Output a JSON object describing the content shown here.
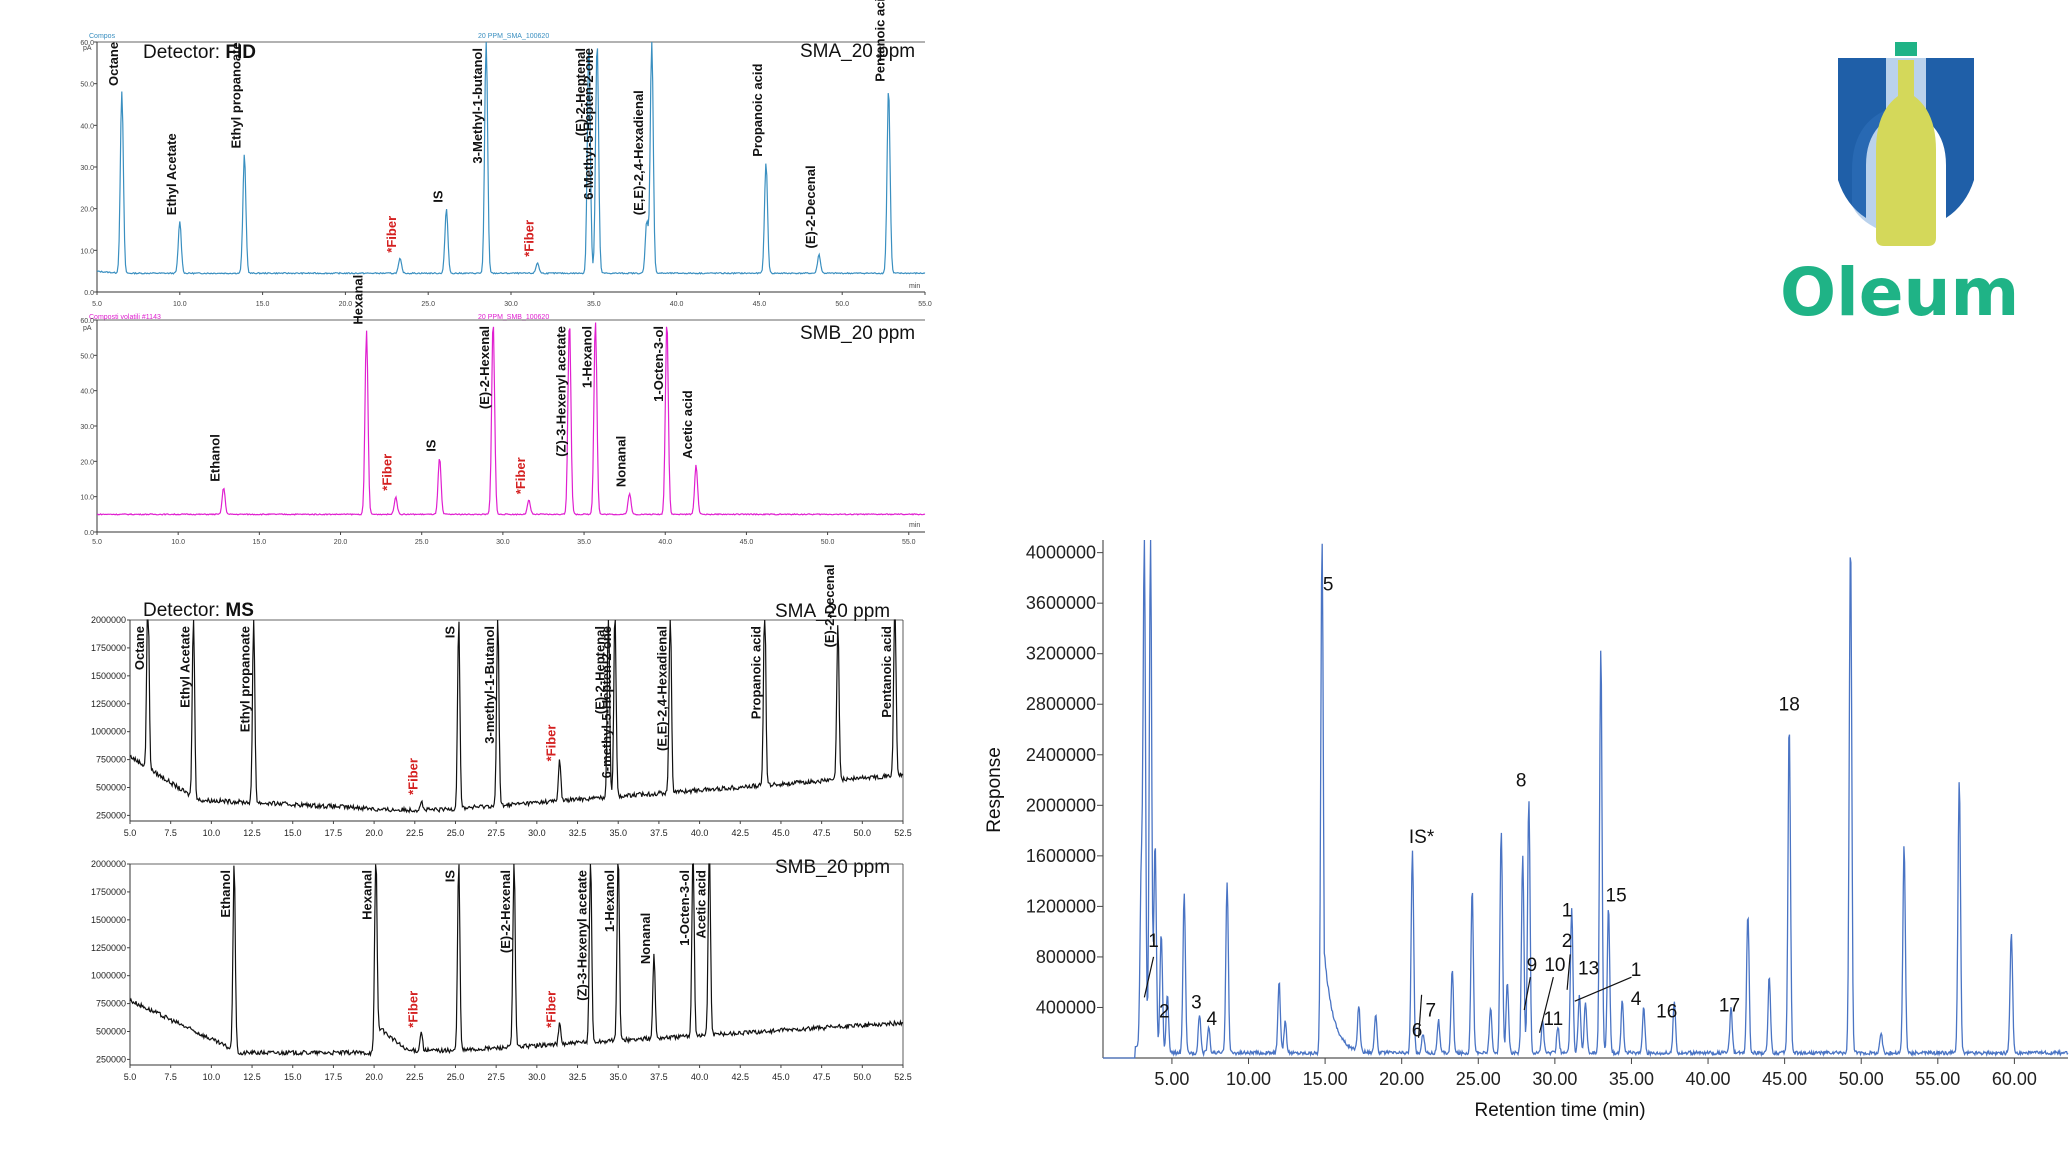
{
  "brand": {
    "name": "Oleum",
    "colors": {
      "blue": "#1f5fa8",
      "teal": "#1fb386",
      "yellow": "#d4d85a"
    }
  },
  "panels": {
    "fid_a": {
      "detector_prefix": "Detector: ",
      "detector": "FID",
      "sample": "SMA_20 ppm",
      "trace_title": "20 PPM_SMA_100620",
      "tiny_left": "Compos",
      "unit": "pA",
      "color": "#3a8fc0"
    },
    "fid_b": {
      "sample": "SMB_20 ppm",
      "trace_title": "20 PPM_SMB_100620",
      "tiny_left": "Composti volatili #1143",
      "unit": "pA",
      "color": "#e020d0"
    },
    "ms_a": {
      "detector_prefix": "Detector: ",
      "detector": "MS",
      "sample": "SMA_20 ppm",
      "color": "#111111"
    },
    "ms_b": {
      "sample": "SMB_20 ppm",
      "color": "#111111"
    },
    "right": {
      "color": "#4a74c4"
    }
  },
  "chart_data": [
    {
      "type": "line",
      "id": "fid_a",
      "xlabel": "min",
      "ylabel": "pA",
      "xlim": [
        5,
        55
      ],
      "ylim": [
        0,
        60
      ],
      "xticks": [
        "5.0",
        "10.0",
        "15.0",
        "20.0",
        "25.0",
        "30.0",
        "35.0",
        "40.0",
        "45.0",
        "50.0",
        "55.0"
      ],
      "yticks": [
        "0.0",
        "10.0",
        "20.0",
        "30.0",
        "40.0",
        "50.0",
        "60.0"
      ],
      "baseline": 4.5,
      "peaks": [
        {
          "x": 6.5,
          "y": 48,
          "label": "Octane"
        },
        {
          "x": 10.0,
          "y": 17,
          "label": "Ethyl Acetate"
        },
        {
          "x": 13.9,
          "y": 33,
          "label": "Ethyl propanoate"
        },
        {
          "x": 23.3,
          "y": 8,
          "label": "*Fiber",
          "fiber": true
        },
        {
          "x": 26.1,
          "y": 20,
          "label": "IS"
        },
        {
          "x": 28.5,
          "y": 60,
          "label": "3-Methyl-1-butanol"
        },
        {
          "x": 31.6,
          "y": 7,
          "label": "*Fiber",
          "fiber": true
        },
        {
          "x": 34.7,
          "y": 60,
          "label": "(E)-2-Heptenal"
        },
        {
          "x": 35.2,
          "y": 60,
          "label": "6-Methyl-5-Hepten-2-one"
        },
        {
          "x": 38.2,
          "y": 17,
          "label": "(E,E)-2,4-Hexadienal"
        },
        {
          "x": 38.5,
          "y": 60,
          "label": ""
        },
        {
          "x": 45.4,
          "y": 31,
          "label": "Propanoic acid"
        },
        {
          "x": 48.6,
          "y": 9,
          "label": "(E)-2-Decenal"
        },
        {
          "x": 52.8,
          "y": 49,
          "label": "Pentanoic acid"
        }
      ]
    },
    {
      "type": "line",
      "id": "fid_b",
      "xlabel": "min",
      "ylabel": "pA",
      "xlim": [
        5,
        56
      ],
      "ylim": [
        0,
        60
      ],
      "xticks": [
        "5.0",
        "10.0",
        "15.0",
        "20.0",
        "25.0",
        "30.0",
        "35.0",
        "40.0",
        "45.0",
        "50.0",
        "55.0"
      ],
      "yticks": [
        "0.0",
        "10.0",
        "20.0",
        "30.0",
        "40.0",
        "50.0",
        "60.0"
      ],
      "baseline": 5,
      "peaks": [
        {
          "x": 12.8,
          "y": 12.5,
          "label": "Ethanol"
        },
        {
          "x": 21.6,
          "y": 57,
          "label": "Hexanal"
        },
        {
          "x": 23.4,
          "y": 10,
          "label": "*Fiber",
          "fiber": true
        },
        {
          "x": 26.1,
          "y": 21,
          "label": "IS"
        },
        {
          "x": 29.4,
          "y": 60,
          "label": "(E)-2-Hexenal"
        },
        {
          "x": 31.6,
          "y": 9,
          "label": "*Fiber",
          "fiber": true
        },
        {
          "x": 34.1,
          "y": 60,
          "label": "(Z)-3-Hexenyl acetate"
        },
        {
          "x": 35.7,
          "y": 60,
          "label": "1-Hexanol"
        },
        {
          "x": 37.8,
          "y": 11,
          "label": "Nonanal"
        },
        {
          "x": 40.1,
          "y": 60,
          "label": "1-Octen-3-ol"
        },
        {
          "x": 41.9,
          "y": 19,
          "label": "Acetic acid"
        }
      ]
    },
    {
      "type": "line",
      "id": "ms_a",
      "xlim": [
        5,
        52.5
      ],
      "ylim": [
        200000,
        2000000
      ],
      "xticks": [
        "5.0",
        "7.5",
        "10.0",
        "12.5",
        "15.0",
        "17.5",
        "20.0",
        "22.5",
        "25.0",
        "27.5",
        "30.0",
        "32.5",
        "35.0",
        "37.5",
        "40.0",
        "42.5",
        "45.0",
        "47.5",
        "50.0",
        "52.5"
      ],
      "yticks": [
        "250000",
        "500000",
        "750000",
        "1000000",
        "1250000",
        "1500000",
        "1750000",
        "2000000"
      ],
      "peaks": [
        {
          "x": 6.1,
          "y": 2000000,
          "label": "Octane"
        },
        {
          "x": 8.9,
          "y": 2000000,
          "label": "Ethyl Acetate"
        },
        {
          "x": 12.6,
          "y": 2000000,
          "label": "Ethyl propanoate"
        },
        {
          "x": 22.9,
          "y": 380000,
          "label": "*Fiber",
          "fiber": true
        },
        {
          "x": 25.2,
          "y": 2000000,
          "label": "IS"
        },
        {
          "x": 27.6,
          "y": 2000000,
          "label": "3-methyl-1-Butanol"
        },
        {
          "x": 31.4,
          "y": 680000,
          "label": "*Fiber",
          "fiber": true
        },
        {
          "x": 34.4,
          "y": 2000000,
          "label": "(E)-2-Heptenal"
        },
        {
          "x": 34.8,
          "y": 2000000,
          "label": "6-methyl-5-Hepten-2-one"
        },
        {
          "x": 38.2,
          "y": 2000000,
          "label": "(E,E)-2,4-Hexadienal"
        },
        {
          "x": 44.0,
          "y": 2000000,
          "label": "Propanoic acid"
        },
        {
          "x": 48.5,
          "y": 1700000,
          "label": "(E)-2-Decenal"
        },
        {
          "x": 52.0,
          "y": 2000000,
          "label": "Pentanoic acid"
        }
      ]
    },
    {
      "type": "line",
      "id": "ms_b",
      "xlim": [
        5,
        52.5
      ],
      "ylim": [
        200000,
        2000000
      ],
      "xticks": [
        "5.0",
        "7.5",
        "10.0",
        "12.5",
        "15.0",
        "17.5",
        "20.0",
        "22.5",
        "25.0",
        "27.5",
        "30.0",
        "32.5",
        "35.0",
        "37.5",
        "40.0",
        "42.5",
        "45.0",
        "47.5",
        "50.0",
        "52.5"
      ],
      "yticks": [
        "250000",
        "500000",
        "750000",
        "1000000",
        "1250000",
        "1500000",
        "1750000",
        "2000000"
      ],
      "peaks": [
        {
          "x": 11.4,
          "y": 2000000,
          "label": "Ethanol"
        },
        {
          "x": 20.1,
          "y": 2000000,
          "label": "Hexanal"
        },
        {
          "x": 22.9,
          "y": 480000,
          "label": "*Fiber",
          "fiber": true
        },
        {
          "x": 25.2,
          "y": 2000000,
          "label": "IS"
        },
        {
          "x": 28.6,
          "y": 2000000,
          "label": "(E)-2-Hexenal"
        },
        {
          "x": 31.4,
          "y": 480000,
          "label": "*Fiber",
          "fiber": true
        },
        {
          "x": 33.3,
          "y": 2000000,
          "label": "(Z)-3-Hexenyl acetate"
        },
        {
          "x": 35.0,
          "y": 2000000,
          "label": "1-Hexanol"
        },
        {
          "x": 37.2,
          "y": 1050000,
          "label": "Nonanal"
        },
        {
          "x": 39.6,
          "y": 2000000,
          "label": "1-Octen-3-ol"
        },
        {
          "x": 40.6,
          "y": 2000000,
          "label": "Acetic acid"
        }
      ]
    },
    {
      "type": "line",
      "id": "right",
      "xlabel": "Retention time (min)",
      "ylabel": "Response",
      "xlim": [
        0.5,
        63.5
      ],
      "ylim": [
        0,
        4100000
      ],
      "xticks": [
        "5.00",
        "10.00",
        "15.00",
        "20.00",
        "25.00",
        "30.00",
        "35.00",
        "40.00",
        "45.00",
        "50.00",
        "55.00",
        "60.00"
      ],
      "yticks": [
        "400000",
        "800000",
        "1200000",
        "1600000",
        "2000000",
        "2400000",
        "2800000",
        "3200000",
        "3600000",
        "4000000"
      ],
      "peaks": [
        {
          "x": 3.2,
          "y": 4100000
        },
        {
          "x": 3.6,
          "y": 4100000
        },
        {
          "x": 3.0,
          "y": 1400000
        },
        {
          "x": 3.9,
          "y": 1700000
        },
        {
          "x": 4.3,
          "y": 1000000
        },
        {
          "x": 4.7,
          "y": 500000
        },
        {
          "x": 5.8,
          "y": 1300000
        },
        {
          "x": 6.8,
          "y": 350000
        },
        {
          "x": 7.4,
          "y": 250000
        },
        {
          "x": 8.6,
          "y": 1400000
        },
        {
          "x": 12.0,
          "y": 600000
        },
        {
          "x": 12.4,
          "y": 300000
        },
        {
          "x": 14.8,
          "y": 4100000
        },
        {
          "x": 17.2,
          "y": 400000
        },
        {
          "x": 18.3,
          "y": 350000
        },
        {
          "x": 20.7,
          "y": 1650000
        },
        {
          "x": 21.4,
          "y": 200000
        },
        {
          "x": 22.4,
          "y": 300000
        },
        {
          "x": 23.3,
          "y": 700000
        },
        {
          "x": 24.6,
          "y": 1350000
        },
        {
          "x": 25.8,
          "y": 400000
        },
        {
          "x": 26.5,
          "y": 1800000
        },
        {
          "x": 26.9,
          "y": 600000
        },
        {
          "x": 27.9,
          "y": 1600000
        },
        {
          "x": 28.3,
          "y": 2050000
        },
        {
          "x": 29.2,
          "y": 300000
        },
        {
          "x": 30.2,
          "y": 250000
        },
        {
          "x": 31.1,
          "y": 1200000
        },
        {
          "x": 31.6,
          "y": 500000
        },
        {
          "x": 32.0,
          "y": 450000
        },
        {
          "x": 33.0,
          "y": 3250000
        },
        {
          "x": 33.5,
          "y": 1200000
        },
        {
          "x": 34.4,
          "y": 450000
        },
        {
          "x": 35.8,
          "y": 400000
        },
        {
          "x": 37.8,
          "y": 450000
        },
        {
          "x": 41.5,
          "y": 400000
        },
        {
          "x": 42.6,
          "y": 1150000
        },
        {
          "x": 44.0,
          "y": 650000
        },
        {
          "x": 45.3,
          "y": 2650000
        },
        {
          "x": 49.3,
          "y": 4100000
        },
        {
          "x": 51.3,
          "y": 200000
        },
        {
          "x": 52.8,
          "y": 1700000
        },
        {
          "x": 56.4,
          "y": 2200000
        },
        {
          "x": 59.8,
          "y": 1000000
        }
      ],
      "annotations": [
        {
          "text": "1",
          "x": 3.8,
          "y": 880000
        },
        {
          "text": "2",
          "x": 4.5,
          "y": 320000
        },
        {
          "text": "3",
          "x": 6.6,
          "y": 390000
        },
        {
          "text": "4",
          "x": 7.6,
          "y": 260000
        },
        {
          "text": "5",
          "x": 15.2,
          "y": 3700000
        },
        {
          "text": "6",
          "x": 21.0,
          "y": 170000
        },
        {
          "text": "7",
          "x": 21.9,
          "y": 330000
        },
        {
          "text": "IS*",
          "x": 21.3,
          "y": 1700000
        },
        {
          "text": "8",
          "x": 27.8,
          "y": 2150000
        },
        {
          "text": "9",
          "x": 28.5,
          "y": 690000
        },
        {
          "text": "10",
          "x": 30.0,
          "y": 690000
        },
        {
          "text": "11",
          "x": 29.9,
          "y": 260000
        },
        {
          "text": "1",
          "x": 30.8,
          "y": 1120000
        },
        {
          "text": "2",
          "x": 30.8,
          "y": 880000
        },
        {
          "text": "13",
          "x": 32.2,
          "y": 660000
        },
        {
          "text": "15",
          "x": 34.0,
          "y": 1240000
        },
        {
          "text": "1",
          "x": 35.3,
          "y": 650000
        },
        {
          "text": "4",
          "x": 35.3,
          "y": 420000
        },
        {
          "text": "16",
          "x": 37.3,
          "y": 320000
        },
        {
          "text": "17",
          "x": 41.4,
          "y": 370000
        },
        {
          "text": "18",
          "x": 45.3,
          "y": 2750000
        }
      ]
    }
  ]
}
